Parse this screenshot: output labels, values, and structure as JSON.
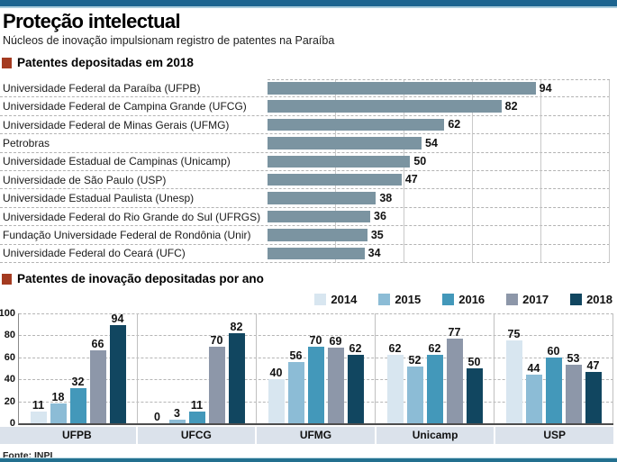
{
  "header": {
    "title": "Proteção intelectual",
    "subtitle": "Núcleos de inovação impulsionam registro de patentes na Paraíba"
  },
  "source": "Fonte: INPI",
  "colors": {
    "top_bar": "#1d6590",
    "bottom_bar": "#23708f",
    "section_bullet": "#a43b21",
    "category_band": "#dbe2eb",
    "horizontal_bar": "#7b94a1"
  },
  "chart_data": [
    {
      "type": "bar",
      "orientation": "horizontal",
      "title": "Patentes depositadas em 2018",
      "categories": [
        "Universidade Federal da Paraíba (UFPB)",
        "Universidade Federal de Campina Grande (UFCG)",
        "Universidade Federal de Minas Gerais (UFMG)",
        "Petrobras",
        "Universidade Estadual de Campinas (Unicamp)",
        "Universidade de São Paulo (USP)",
        "Universidade Estadual Paulista (Unesp)",
        "Universidade Federal do Rio Grande do Sul (UFRGS)",
        "Fundação Universidade Federal de Rondônia (Unir)",
        "Universidade Federal do Ceará (UFC)"
      ],
      "values": [
        94,
        82,
        62,
        54,
        50,
        47,
        38,
        36,
        35,
        34
      ],
      "xlim": [
        0,
        120
      ],
      "bar_color": "#7b94a1",
      "grid": true
    },
    {
      "type": "bar",
      "orientation": "vertical-grouped",
      "title": "Patentes de inovação depositadas por ano",
      "categories": [
        "UFPB",
        "UFCG",
        "UFMG",
        "Unicamp",
        "USP"
      ],
      "series": [
        {
          "name": "2014",
          "color": "#d8e6f0",
          "values": [
            11,
            0,
            40,
            62,
            75
          ]
        },
        {
          "name": "2015",
          "color": "#8cbcd6",
          "values": [
            18,
            3,
            56,
            52,
            44
          ]
        },
        {
          "name": "2016",
          "color": "#4398ba",
          "values": [
            32,
            11,
            70,
            62,
            60
          ]
        },
        {
          "name": "2017",
          "color": "#8d97a9",
          "values": [
            66,
            70,
            69,
            77,
            53
          ]
        },
        {
          "name": "2018",
          "color": "#114660",
          "values": [
            94,
            82,
            62,
            50,
            47
          ]
        }
      ],
      "ylim": [
        0,
        100
      ],
      "yticks": [
        0,
        20,
        40,
        60,
        80,
        100
      ],
      "legend_position": "top-right",
      "grid": true
    }
  ]
}
